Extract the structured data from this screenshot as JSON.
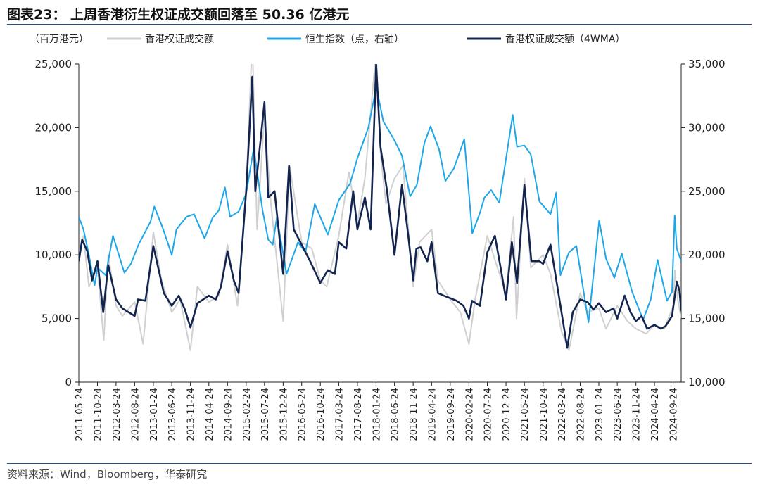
{
  "figure_title": "图表23：  上周香港衍生权证成交额回落至 50.36 亿港元",
  "source_note": "资料来源：Wind，Bloomberg，华泰研究",
  "chart_data": {
    "type": "line",
    "legend_placement": "top",
    "grid": false,
    "unit_label": "（百万港元）",
    "x_start": "2011-05-24",
    "x_end": "2024-11-29",
    "x_tick_labels": [
      "2011-05-24",
      "2011-10-24",
      "2012-03-24",
      "2012-08-24",
      "2013-01-24",
      "2013-06-24",
      "2013-11-24",
      "2014-04-24",
      "2014-09-24",
      "2015-02-24",
      "2015-07-24",
      "2015-12-24",
      "2016-05-24",
      "2016-10-24",
      "2017-03-24",
      "2017-08-24",
      "2018-01-24",
      "2018-06-24",
      "2018-11-24",
      "2019-04-24",
      "2019-09-24",
      "2020-02-24",
      "2020-07-24",
      "2020-12-24",
      "2021-05-24",
      "2021-10-24",
      "2022-03-24",
      "2022-08-24",
      "2023-01-24",
      "2023-06-24",
      "2023-11-24",
      "2024-04-24",
      "2024-09-24"
    ],
    "y_left": {
      "min": 0,
      "max": 25000,
      "ticks": [
        0,
        5000,
        10000,
        15000,
        20000,
        25000
      ],
      "tick_labels": [
        "0",
        "5,000",
        "10,000",
        "15,000",
        "20,000",
        "25,000"
      ]
    },
    "y_right": {
      "min": 10000,
      "max": 35000,
      "ticks": [
        10000,
        15000,
        20000,
        25000,
        30000,
        35000
      ],
      "tick_labels": [
        "10,000",
        "15,000",
        "20,000",
        "25,000",
        "30,000",
        "35,000"
      ]
    },
    "series": [
      {
        "name": "香港权证成交额",
        "axis": "left",
        "color": "#d0d0d0",
        "points": [
          [
            "2011-05-24",
            9500
          ],
          [
            "2011-07-01",
            11500
          ],
          [
            "2011-08-15",
            7500
          ],
          [
            "2011-10-24",
            9000
          ],
          [
            "2011-12-15",
            3300
          ],
          [
            "2012-01-20",
            10000
          ],
          [
            "2012-03-24",
            6000
          ],
          [
            "2012-05-15",
            5200
          ],
          [
            "2012-08-24",
            6300
          ],
          [
            "2012-11-01",
            3000
          ],
          [
            "2013-01-24",
            11800
          ],
          [
            "2013-04-01",
            8000
          ],
          [
            "2013-06-24",
            5500
          ],
          [
            "2013-09-01",
            6500
          ],
          [
            "2013-11-24",
            2500
          ],
          [
            "2014-01-20",
            7500
          ],
          [
            "2014-04-24",
            6300
          ],
          [
            "2014-07-15",
            6800
          ],
          [
            "2014-09-24",
            10800
          ],
          [
            "2014-12-15",
            6000
          ],
          [
            "2015-02-24",
            15000
          ],
          [
            "2015-04-15",
            27000
          ],
          [
            "2015-05-24",
            12000
          ],
          [
            "2015-07-24",
            21000
          ],
          [
            "2015-09-15",
            14000
          ],
          [
            "2015-12-24",
            4800
          ],
          [
            "2016-02-15",
            17000
          ],
          [
            "2016-05-24",
            11000
          ],
          [
            "2016-08-15",
            10500
          ],
          [
            "2016-10-24",
            8000
          ],
          [
            "2016-12-15",
            7500
          ],
          [
            "2017-03-24",
            11500
          ],
          [
            "2017-06-15",
            16500
          ],
          [
            "2017-08-24",
            12500
          ],
          [
            "2017-10-24",
            16000
          ],
          [
            "2018-01-24",
            26000
          ],
          [
            "2018-03-01",
            18000
          ],
          [
            "2018-04-15",
            14000
          ],
          [
            "2018-06-24",
            16000
          ],
          [
            "2018-09-01",
            17000
          ],
          [
            "2018-11-24",
            7500
          ],
          [
            "2019-01-15",
            11000
          ],
          [
            "2019-04-24",
            12000
          ],
          [
            "2019-06-15",
            8000
          ],
          [
            "2019-09-24",
            6500
          ],
          [
            "2019-12-15",
            5500
          ],
          [
            "2020-02-24",
            3000
          ],
          [
            "2020-04-15",
            6500
          ],
          [
            "2020-07-24",
            11500
          ],
          [
            "2020-10-15",
            9000
          ],
          [
            "2020-12-24",
            7000
          ],
          [
            "2021-02-24",
            13000
          ],
          [
            "2021-03-20",
            5000
          ],
          [
            "2021-05-24",
            16000
          ],
          [
            "2021-07-15",
            9000
          ],
          [
            "2021-10-24",
            10000
          ],
          [
            "2021-12-24",
            8500
          ],
          [
            "2022-03-24",
            4000
          ],
          [
            "2022-05-24",
            2500
          ],
          [
            "2022-08-24",
            7000
          ],
          [
            "2022-10-24",
            5500
          ],
          [
            "2023-01-24",
            5800
          ],
          [
            "2023-03-24",
            4200
          ],
          [
            "2023-06-24",
            6000
          ],
          [
            "2023-09-15",
            4800
          ],
          [
            "2023-11-24",
            4200
          ],
          [
            "2024-02-15",
            3800
          ],
          [
            "2024-04-24",
            4500
          ],
          [
            "2024-07-15",
            4200
          ],
          [
            "2024-09-24",
            6000
          ],
          [
            "2024-10-08",
            8800
          ],
          [
            "2024-11-01",
            6500
          ],
          [
            "2024-11-29",
            5036
          ]
        ]
      },
      {
        "name": "恒生指数（点，右轴）",
        "axis": "right",
        "color": "#1ea7e8",
        "points": [
          [
            "2011-05-24",
            23000
          ],
          [
            "2011-07-01",
            22000
          ],
          [
            "2011-08-15",
            20000
          ],
          [
            "2011-09-30",
            17600
          ],
          [
            "2011-10-24",
            19000
          ],
          [
            "2011-12-30",
            18400
          ],
          [
            "2012-02-28",
            21500
          ],
          [
            "2012-05-31",
            18600
          ],
          [
            "2012-07-24",
            19300
          ],
          [
            "2012-09-24",
            20800
          ],
          [
            "2012-12-31",
            22600
          ],
          [
            "2013-02-01",
            23800
          ],
          [
            "2013-04-15",
            22000
          ],
          [
            "2013-06-24",
            20000
          ],
          [
            "2013-08-01",
            22000
          ],
          [
            "2013-10-24",
            23000
          ],
          [
            "2013-12-24",
            23200
          ],
          [
            "2014-03-20",
            21300
          ],
          [
            "2014-05-24",
            22900
          ],
          [
            "2014-07-15",
            23500
          ],
          [
            "2014-09-03",
            25300
          ],
          [
            "2014-10-15",
            23000
          ],
          [
            "2014-12-24",
            23400
          ],
          [
            "2015-02-24",
            24800
          ],
          [
            "2015-04-27",
            28400
          ],
          [
            "2015-07-08",
            23500
          ],
          [
            "2015-08-24",
            21200
          ],
          [
            "2015-09-30",
            20800
          ],
          [
            "2015-11-03",
            23000
          ],
          [
            "2016-01-21",
            18500
          ],
          [
            "2016-04-24",
            21000
          ],
          [
            "2016-06-24",
            20200
          ],
          [
            "2016-09-08",
            24000
          ],
          [
            "2016-12-24",
            21600
          ],
          [
            "2017-03-24",
            24300
          ],
          [
            "2017-06-24",
            25600
          ],
          [
            "2017-08-24",
            27600
          ],
          [
            "2017-11-21",
            30000
          ],
          [
            "2018-01-26",
            33200
          ],
          [
            "2018-03-24",
            30500
          ],
          [
            "2018-06-24",
            29000
          ],
          [
            "2018-08-24",
            27800
          ],
          [
            "2018-10-30",
            24600
          ],
          [
            "2018-12-24",
            25500
          ],
          [
            "2019-02-24",
            28800
          ],
          [
            "2019-04-15",
            30100
          ],
          [
            "2019-06-24",
            28300
          ],
          [
            "2019-08-15",
            25800
          ],
          [
            "2019-10-24",
            26800
          ],
          [
            "2020-01-17",
            29100
          ],
          [
            "2020-03-23",
            21700
          ],
          [
            "2020-05-24",
            23300
          ],
          [
            "2020-06-30",
            24500
          ],
          [
            "2020-08-24",
            25100
          ],
          [
            "2020-10-30",
            24100
          ],
          [
            "2021-02-17",
            31000
          ],
          [
            "2021-03-24",
            28500
          ],
          [
            "2021-05-24",
            28600
          ],
          [
            "2021-07-15",
            27900
          ],
          [
            "2021-09-24",
            24200
          ],
          [
            "2021-12-24",
            23200
          ],
          [
            "2022-02-09",
            24900
          ],
          [
            "2022-03-15",
            18400
          ],
          [
            "2022-05-24",
            20200
          ],
          [
            "2022-07-24",
            20700
          ],
          [
            "2022-10-31",
            14700
          ],
          [
            "2023-01-27",
            22700
          ],
          [
            "2023-03-24",
            19700
          ],
          [
            "2023-05-31",
            18200
          ],
          [
            "2023-07-31",
            20100
          ],
          [
            "2023-10-24",
            17100
          ],
          [
            "2024-01-22",
            14900
          ],
          [
            "2024-03-24",
            16500
          ],
          [
            "2024-05-20",
            19600
          ],
          [
            "2024-08-05",
            16400
          ],
          [
            "2024-09-15",
            17100
          ],
          [
            "2024-10-07",
            23100
          ],
          [
            "2024-10-24",
            20500
          ],
          [
            "2024-11-29",
            19500
          ]
        ]
      },
      {
        "name": "香港权证成交额（4WMA）",
        "axis": "left",
        "color": "#13254f",
        "points": [
          [
            "2011-05-24",
            9500
          ],
          [
            "2011-06-20",
            11200
          ],
          [
            "2011-08-01",
            10300
          ],
          [
            "2011-09-10",
            8000
          ],
          [
            "2011-10-24",
            9500
          ],
          [
            "2011-12-10",
            5500
          ],
          [
            "2012-01-20",
            9200
          ],
          [
            "2012-03-24",
            6500
          ],
          [
            "2012-05-15",
            5800
          ],
          [
            "2012-08-24",
            5200
          ],
          [
            "2012-09-20",
            6500
          ],
          [
            "2012-11-20",
            6400
          ],
          [
            "2013-01-24",
            10700
          ],
          [
            "2013-04-20",
            7000
          ],
          [
            "2013-06-24",
            6000
          ],
          [
            "2013-08-20",
            6800
          ],
          [
            "2013-10-10",
            5700
          ],
          [
            "2013-11-24",
            4300
          ],
          [
            "2014-01-20",
            6200
          ],
          [
            "2014-04-24",
            6800
          ],
          [
            "2014-06-20",
            6500
          ],
          [
            "2014-08-01",
            7500
          ],
          [
            "2014-09-24",
            10300
          ],
          [
            "2014-11-15",
            8000
          ],
          [
            "2014-12-24",
            7000
          ],
          [
            "2015-02-24",
            15000
          ],
          [
            "2015-04-15",
            24000
          ],
          [
            "2015-05-10",
            15000
          ],
          [
            "2015-07-24",
            22000
          ],
          [
            "2015-08-24",
            14500
          ],
          [
            "2015-10-15",
            15000
          ],
          [
            "2015-12-24",
            8500
          ],
          [
            "2016-02-10",
            17000
          ],
          [
            "2016-03-20",
            12000
          ],
          [
            "2016-05-24",
            10800
          ],
          [
            "2016-08-01",
            9500
          ],
          [
            "2016-10-24",
            7800
          ],
          [
            "2016-12-24",
            8800
          ],
          [
            "2017-02-20",
            8500
          ],
          [
            "2017-03-24",
            11000
          ],
          [
            "2017-05-24",
            10500
          ],
          [
            "2017-07-20",
            15000
          ],
          [
            "2017-08-24",
            12000
          ],
          [
            "2017-10-24",
            14500
          ],
          [
            "2017-12-10",
            12000
          ],
          [
            "2018-01-24",
            25000
          ],
          [
            "2018-03-01",
            18500
          ],
          [
            "2018-04-24",
            15000
          ],
          [
            "2018-06-24",
            10000
          ],
          [
            "2018-08-24",
            15500
          ],
          [
            "2018-10-15",
            11500
          ],
          [
            "2018-11-24",
            8000
          ],
          [
            "2018-12-20",
            10500
          ],
          [
            "2019-01-24",
            10600
          ],
          [
            "2019-03-20",
            9500
          ],
          [
            "2019-04-24",
            11000
          ],
          [
            "2019-06-15",
            7000
          ],
          [
            "2019-08-01",
            6800
          ],
          [
            "2019-09-24",
            6600
          ],
          [
            "2019-11-15",
            6400
          ],
          [
            "2020-01-10",
            6000
          ],
          [
            "2020-02-24",
            5000
          ],
          [
            "2020-03-20",
            6400
          ],
          [
            "2020-05-24",
            6000
          ],
          [
            "2020-07-24",
            10200
          ],
          [
            "2020-09-24",
            11500
          ],
          [
            "2020-11-10",
            9000
          ],
          [
            "2020-12-24",
            6500
          ],
          [
            "2021-02-10",
            11000
          ],
          [
            "2021-03-24",
            7800
          ],
          [
            "2021-05-24",
            15500
          ],
          [
            "2021-07-20",
            9500
          ],
          [
            "2021-09-24",
            9500
          ],
          [
            "2021-10-24",
            9300
          ],
          [
            "2021-12-24",
            10800
          ],
          [
            "2022-01-24",
            9000
          ],
          [
            "2022-03-24",
            5500
          ],
          [
            "2022-05-10",
            2700
          ],
          [
            "2022-06-24",
            5500
          ],
          [
            "2022-08-24",
            6500
          ],
          [
            "2022-10-24",
            6300
          ],
          [
            "2022-12-10",
            5700
          ],
          [
            "2023-01-24",
            6200
          ],
          [
            "2023-03-24",
            5500
          ],
          [
            "2023-05-24",
            5800
          ],
          [
            "2023-06-24",
            5000
          ],
          [
            "2023-08-24",
            6800
          ],
          [
            "2023-10-10",
            5500
          ],
          [
            "2023-11-24",
            4800
          ],
          [
            "2024-01-10",
            5200
          ],
          [
            "2024-02-24",
            4200
          ],
          [
            "2024-04-24",
            4500
          ],
          [
            "2024-06-15",
            4200
          ],
          [
            "2024-07-24",
            4400
          ],
          [
            "2024-09-15",
            5200
          ],
          [
            "2024-10-24",
            7900
          ],
          [
            "2024-11-15",
            7200
          ],
          [
            "2024-11-29",
            5600
          ]
        ]
      }
    ]
  }
}
